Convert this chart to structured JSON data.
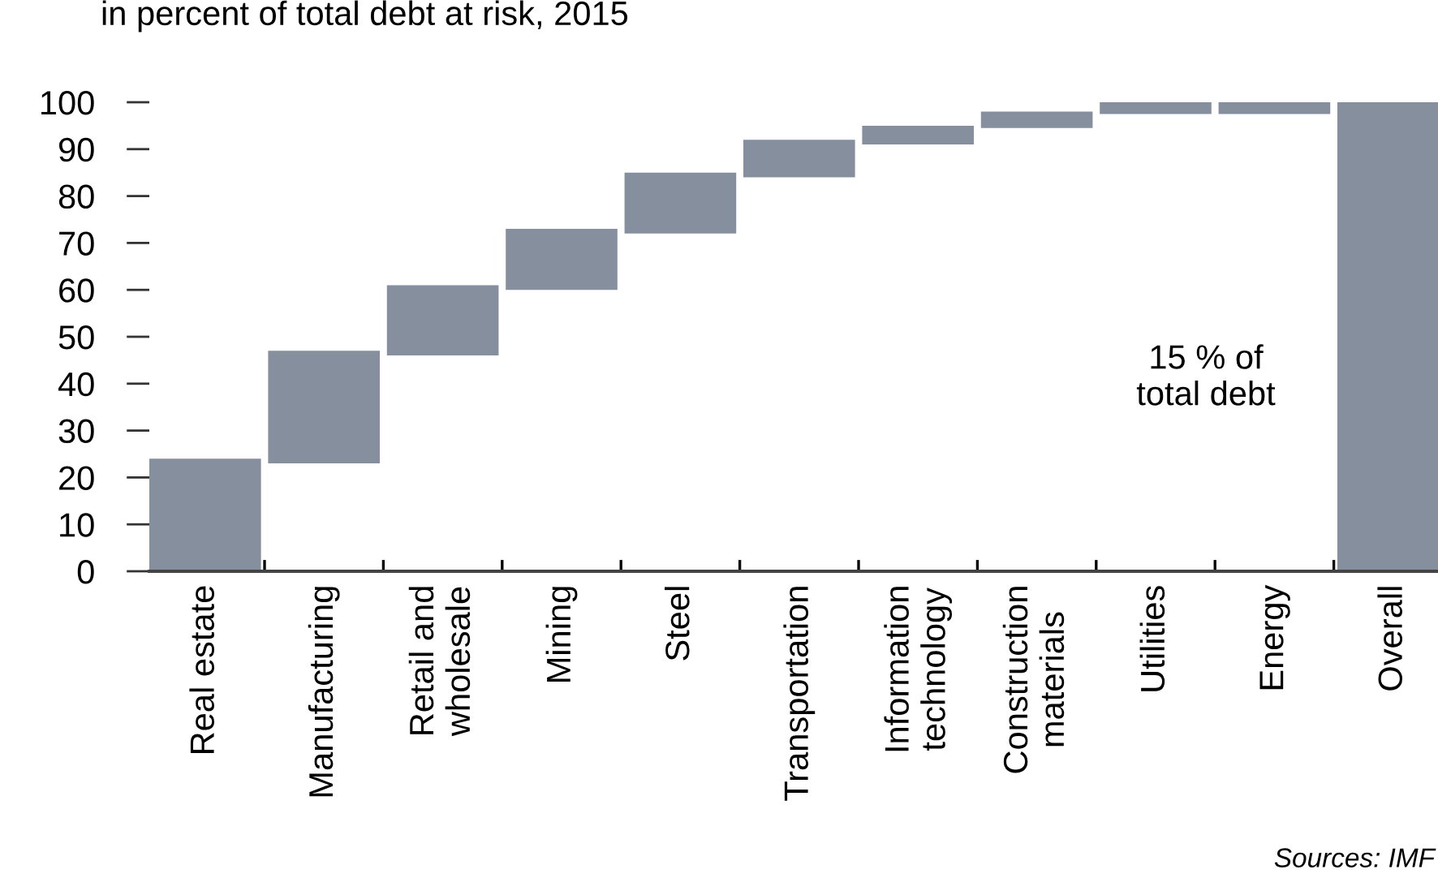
{
  "chart_data": {
    "type": "bar",
    "subtitle": "in percent of total debt at risk, 2015",
    "categories": [
      "Real estate",
      "Manufacturing",
      "Retail and\nwholesale",
      "Mining",
      "Steel",
      "Transportation",
      "Information\ntechnology",
      "Construction\nmaterials",
      "Utilities",
      "Energy",
      "Overall"
    ],
    "values": [
      24,
      24,
      15,
      13,
      13,
      8,
      4,
      3.5,
      2.5,
      2.5,
      100
    ],
    "base": [
      0,
      23,
      46,
      60,
      72,
      84,
      91,
      94.5,
      97.5,
      97.5,
      0
    ],
    "color": "#858f9e",
    "ylim": [
      0,
      100
    ],
    "yticks": [
      0,
      10,
      20,
      30,
      40,
      50,
      60,
      70,
      80,
      90,
      100
    ],
    "grid": false,
    "legend": false,
    "annotations": [
      "15 % of\ntotal debt",
      "Sources: IMF"
    ]
  }
}
